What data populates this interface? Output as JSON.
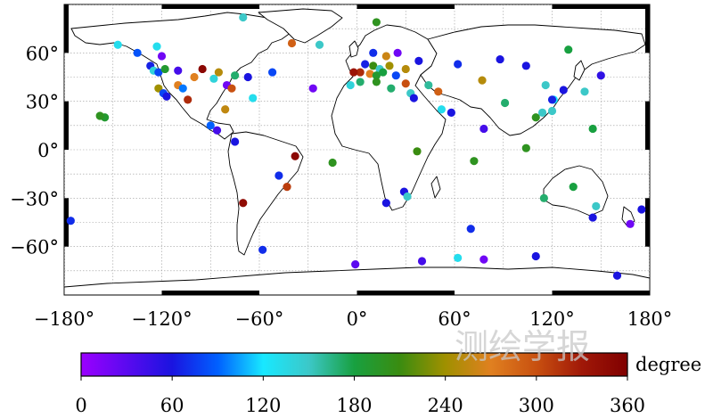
{
  "map": {
    "projection": "equirectangular",
    "lon_range": [
      -180,
      180
    ],
    "lat_range": [
      -90,
      90
    ],
    "lon_tick_labels": [
      {
        "value": -180,
        "label": "−180°"
      },
      {
        "value": -120,
        "label": "−120°"
      },
      {
        "value": -60,
        "label": "−60°"
      },
      {
        "value": 0,
        "label": "0°"
      },
      {
        "value": 60,
        "label": "60°"
      },
      {
        "value": 120,
        "label": "120°"
      },
      {
        "value": 180,
        "label": "180°"
      }
    ],
    "lat_tick_labels": [
      {
        "value": 60,
        "label": "60°"
      },
      {
        "value": 30,
        "label": "30°"
      },
      {
        "value": 0,
        "label": "0°"
      },
      {
        "value": -30,
        "label": "−30°"
      },
      {
        "value": -60,
        "label": "−60°"
      }
    ],
    "grid": true,
    "colors": {
      "land_outline": "#000000",
      "grid": "#9a9a9a"
    }
  },
  "colorbar": {
    "label": "degree",
    "min": 0,
    "max": 360,
    "tick_labels": [
      "0",
      "60",
      "120",
      "180",
      "240",
      "300",
      "360"
    ],
    "gradient_stops": [
      {
        "value": 0,
        "color": "#9b00ff"
      },
      {
        "value": 60,
        "color": "#1a14e0"
      },
      {
        "value": 90,
        "color": "#0060ff"
      },
      {
        "value": 120,
        "color": "#18e8ff"
      },
      {
        "value": 150,
        "color": "#3cc8c8"
      },
      {
        "value": 180,
        "color": "#18a040"
      },
      {
        "value": 210,
        "color": "#3a8c10"
      },
      {
        "value": 240,
        "color": "#a09000"
      },
      {
        "value": 270,
        "color": "#e08020"
      },
      {
        "value": 300,
        "color": "#c85010"
      },
      {
        "value": 330,
        "color": "#a01808"
      },
      {
        "value": 360,
        "color": "#800000"
      }
    ]
  },
  "watermark": "测绘学报",
  "chart_data": {
    "type": "scatter",
    "title": "",
    "xlabel": "",
    "ylabel": "",
    "xlim": [
      -180,
      180
    ],
    "ylim": [
      -90,
      90
    ],
    "color_variable": "degree",
    "points": [
      {
        "lon": -147,
        "lat": 65,
        "v": 130
      },
      {
        "lon": -135,
        "lat": 60,
        "v": 85
      },
      {
        "lon": -123,
        "lat": 64,
        "v": 130
      },
      {
        "lon": -120,
        "lat": 58,
        "v": 20
      },
      {
        "lon": -127,
        "lat": 52,
        "v": 65
      },
      {
        "lon": -125,
        "lat": 49,
        "v": 140
      },
      {
        "lon": -122,
        "lat": 48,
        "v": 80
      },
      {
        "lon": -118,
        "lat": 50,
        "v": 190
      },
      {
        "lon": -110,
        "lat": 49,
        "v": 40
      },
      {
        "lon": -122,
        "lat": 38,
        "v": 240
      },
      {
        "lon": -119,
        "lat": 35,
        "v": 80
      },
      {
        "lon": -117,
        "lat": 33,
        "v": 60
      },
      {
        "lon": -110,
        "lat": 40,
        "v": 270
      },
      {
        "lon": -107,
        "lat": 38,
        "v": 95
      },
      {
        "lon": -104,
        "lat": 31,
        "v": 320
      },
      {
        "lon": -100,
        "lat": 45,
        "v": 270
      },
      {
        "lon": -95,
        "lat": 50,
        "v": 350
      },
      {
        "lon": -88,
        "lat": 44,
        "v": 140
      },
      {
        "lon": -85,
        "lat": 48,
        "v": 250
      },
      {
        "lon": -80,
        "lat": 40,
        "v": 20
      },
      {
        "lon": -77,
        "lat": 38,
        "v": 300
      },
      {
        "lon": -75,
        "lat": 46,
        "v": 170
      },
      {
        "lon": -67,
        "lat": 45,
        "v": 60
      },
      {
        "lon": -81,
        "lat": 25,
        "v": 255
      },
      {
        "lon": -90,
        "lat": 15,
        "v": 90
      },
      {
        "lon": -86,
        "lat": 12,
        "v": 40
      },
      {
        "lon": -75,
        "lat": 5,
        "v": 60
      },
      {
        "lon": -64,
        "lat": 32,
        "v": 130
      },
      {
        "lon": -52,
        "lat": 48,
        "v": 80
      },
      {
        "lon": -40,
        "lat": 66,
        "v": 290
      },
      {
        "lon": -70,
        "lat": 82,
        "v": 150
      },
      {
        "lon": -23,
        "lat": 65,
        "v": 150
      },
      {
        "lon": -27,
        "lat": 38,
        "v": 20
      },
      {
        "lon": -155,
        "lat": 20,
        "v": 190
      },
      {
        "lon": -158,
        "lat": 21,
        "v": 200
      },
      {
        "lon": -38,
        "lat": -4,
        "v": 350
      },
      {
        "lon": -48,
        "lat": -16,
        "v": 70
      },
      {
        "lon": -43,
        "lat": -23,
        "v": 310
      },
      {
        "lon": -70,
        "lat": -33,
        "v": 345
      },
      {
        "lon": -176,
        "lat": -44,
        "v": 70
      },
      {
        "lon": -58,
        "lat": -62,
        "v": 70
      },
      {
        "lon": -15,
        "lat": -8,
        "v": 200
      },
      {
        "lon": 12,
        "lat": 79,
        "v": 200
      },
      {
        "lon": 10,
        "lat": 60,
        "v": 70
      },
      {
        "lon": 25,
        "lat": 60,
        "v": 20
      },
      {
        "lon": 18,
        "lat": 58,
        "v": 260
      },
      {
        "lon": 5,
        "lat": 53,
        "v": 65
      },
      {
        "lon": 10,
        "lat": 52,
        "v": 210
      },
      {
        "lon": 14,
        "lat": 50,
        "v": 150
      },
      {
        "lon": 20,
        "lat": 52,
        "v": 240
      },
      {
        "lon": 2,
        "lat": 48,
        "v": 320
      },
      {
        "lon": 8,
        "lat": 47,
        "v": 270
      },
      {
        "lon": 12,
        "lat": 46,
        "v": 190
      },
      {
        "lon": 16,
        "lat": 48,
        "v": 180
      },
      {
        "lon": -2,
        "lat": 48,
        "v": 335
      },
      {
        "lon": -4,
        "lat": 40,
        "v": 140
      },
      {
        "lon": 2,
        "lat": 42,
        "v": 170
      },
      {
        "lon": 12,
        "lat": 42,
        "v": 200
      },
      {
        "lon": 21,
        "lat": 38,
        "v": 170
      },
      {
        "lon": 24,
        "lat": 46,
        "v": 80
      },
      {
        "lon": 30,
        "lat": 50,
        "v": 250
      },
      {
        "lon": 38,
        "lat": 55,
        "v": 60
      },
      {
        "lon": 30,
        "lat": 41,
        "v": 300
      },
      {
        "lon": 33,
        "lat": 35,
        "v": 150
      },
      {
        "lon": 35,
        "lat": 32,
        "v": 60
      },
      {
        "lon": 44,
        "lat": 40,
        "v": 160
      },
      {
        "lon": 50,
        "lat": 36,
        "v": 290
      },
      {
        "lon": 52,
        "lat": 25,
        "v": 130
      },
      {
        "lon": 58,
        "lat": 23,
        "v": 60
      },
      {
        "lon": 37,
        "lat": -1,
        "v": 210
      },
      {
        "lon": 72,
        "lat": -7,
        "v": 200
      },
      {
        "lon": 29,
        "lat": -26,
        "v": 60
      },
      {
        "lon": 18,
        "lat": -33,
        "v": 60
      },
      {
        "lon": 31,
        "lat": -29,
        "v": 150
      },
      {
        "lon": 70,
        "lat": -49,
        "v": 70
      },
      {
        "lon": 62,
        "lat": 53,
        "v": 70
      },
      {
        "lon": 77,
        "lat": 43,
        "v": 250
      },
      {
        "lon": 78,
        "lat": 13,
        "v": 40
      },
      {
        "lon": 91,
        "lat": 29,
        "v": 170
      },
      {
        "lon": 88,
        "lat": 56,
        "v": 60
      },
      {
        "lon": 104,
        "lat": 52,
        "v": 60
      },
      {
        "lon": 116,
        "lat": 40,
        "v": 150
      },
      {
        "lon": 121,
        "lat": 31,
        "v": 120
      },
      {
        "lon": 114,
        "lat": 23,
        "v": 150
      },
      {
        "lon": 110,
        "lat": 20,
        "v": 200
      },
      {
        "lon": 120,
        "lat": 24,
        "v": 150
      },
      {
        "lon": 127,
        "lat": 37,
        "v": 60
      },
      {
        "lon": 140,
        "lat": 36,
        "v": 150
      },
      {
        "lon": 130,
        "lat": 62,
        "v": 180
      },
      {
        "lon": 150,
        "lat": 46,
        "v": 50
      },
      {
        "lon": 120,
        "lat": 31,
        "v": 65
      },
      {
        "lon": 145,
        "lat": 13,
        "v": 180
      },
      {
        "lon": 104,
        "lat": 1,
        "v": 200
      },
      {
        "lon": 115,
        "lat": -30,
        "v": 170
      },
      {
        "lon": 133,
        "lat": -23,
        "v": 180
      },
      {
        "lon": 147,
        "lat": -35,
        "v": 150
      },
      {
        "lon": 145,
        "lat": -42,
        "v": 60
      },
      {
        "lon": 175,
        "lat": -37,
        "v": 60
      },
      {
        "lon": 168,
        "lat": -46,
        "v": 20
      },
      {
        "lon": 160,
        "lat": -78,
        "v": 60
      },
      {
        "lon": 110,
        "lat": -66,
        "v": 60
      },
      {
        "lon": 78,
        "lat": -68,
        "v": 20
      },
      {
        "lon": 62,
        "lat": -67,
        "v": 130
      },
      {
        "lon": 40,
        "lat": -69,
        "v": 40
      },
      {
        "lon": -1,
        "lat": -71,
        "v": 30
      }
    ]
  }
}
